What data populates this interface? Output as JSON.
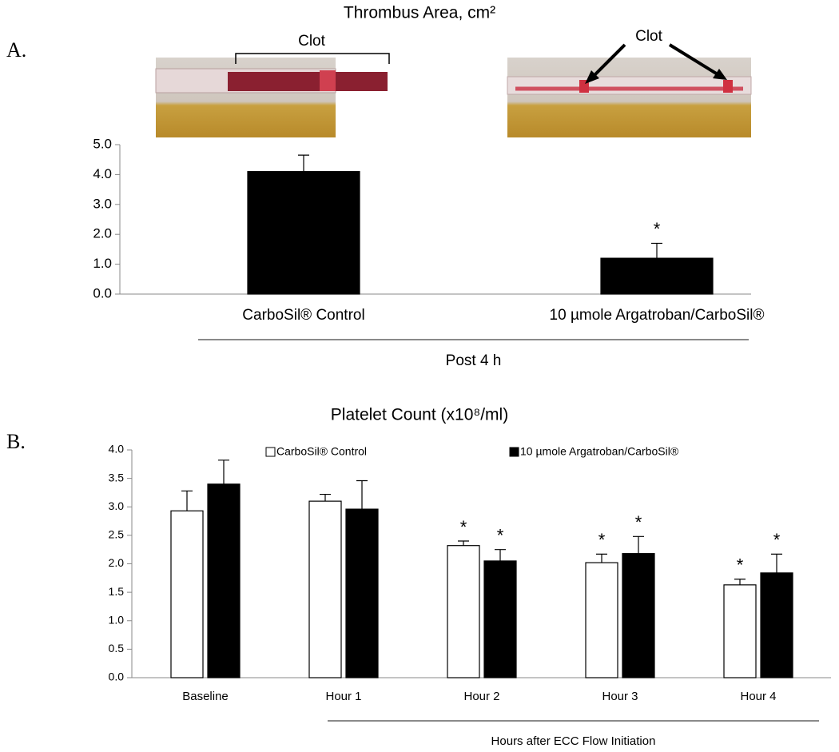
{
  "chart_data": [
    {
      "type": "bar",
      "panel_label": "A.",
      "title": "Thrombus Area, cm²",
      "categories": [
        "CarboSil® Control",
        "10 µmole Argatroban/CarboSil®"
      ],
      "values": [
        4.1,
        1.2
      ],
      "errors": [
        0.55,
        0.5
      ],
      "value_marks": [
        null,
        "*"
      ],
      "color": "#000000",
      "ylim": [
        0,
        5
      ],
      "yticks": [
        {
          "value": 0,
          "label": "0.0"
        },
        {
          "value": 1,
          "label": "1.0"
        },
        {
          "value": 2,
          "label": "2.0"
        },
        {
          "value": 3,
          "label": "3.0"
        },
        {
          "value": 4,
          "label": "4.0"
        },
        {
          "value": 5,
          "label": "5.0"
        }
      ],
      "annotations": [
        "Clot",
        "Clot"
      ],
      "group_label": "Post 4 h"
    },
    {
      "type": "bar",
      "panel_label": "B.",
      "title": "Platelet Count (x10⁸/ml)",
      "categories": [
        "Baseline",
        "Hour 1",
        "Hour 2",
        "Hour 3",
        "Hour 4"
      ],
      "series": [
        {
          "name": "CarboSil® Control",
          "color": "#ffffff",
          "values": [
            2.93,
            3.1,
            2.32,
            2.02,
            1.63
          ],
          "errors": [
            0.35,
            0.12,
            0.08,
            0.15,
            0.1
          ],
          "value_marks": [
            null,
            null,
            "*",
            "*",
            "*"
          ]
        },
        {
          "name": "10 µmole Argatroban/CarboSil®",
          "color": "#000000",
          "values": [
            3.4,
            2.96,
            2.05,
            2.18,
            1.84
          ],
          "errors": [
            0.42,
            0.5,
            0.2,
            0.3,
            0.33
          ],
          "value_marks": [
            null,
            null,
            "*",
            "*",
            "*"
          ]
        }
      ],
      "ylim": [
        0,
        4
      ],
      "yticks": [
        {
          "value": 0,
          "label": "0.0"
        },
        {
          "value": 0.5,
          "label": "0.5"
        },
        {
          "value": 1,
          "label": "1.0"
        },
        {
          "value": 1.5,
          "label": "1.5"
        },
        {
          "value": 2,
          "label": "2.0"
        },
        {
          "value": 2.5,
          "label": "2.5"
        },
        {
          "value": 3,
          "label": "3.0"
        },
        {
          "value": 3.5,
          "label": "3.5"
        },
        {
          "value": 4,
          "label": "4.0"
        }
      ],
      "group_label": "Hours after ECC Flow Initiation"
    }
  ]
}
